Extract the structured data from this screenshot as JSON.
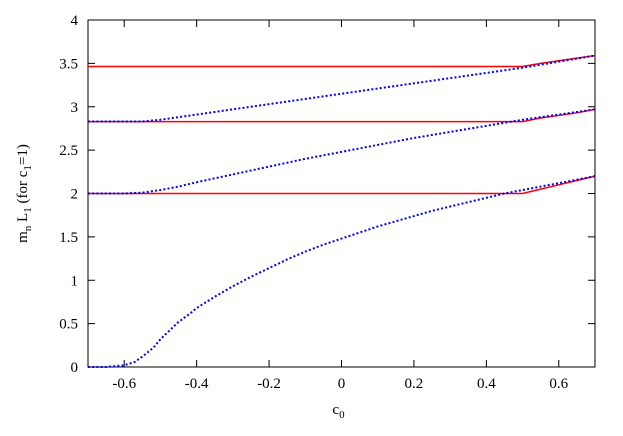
{
  "chart_data": {
    "type": "line",
    "xlabel": {
      "base": "c",
      "sub": "0"
    },
    "ylabel": {
      "parts": [
        {
          "t": "m",
          "sub": false
        },
        {
          "t": "n",
          "sub": true
        },
        {
          "t": " L",
          "sub": false
        },
        {
          "t": "1",
          "sub": true
        },
        {
          "t": " (for c",
          "sub": false
        },
        {
          "t": "1",
          "sub": true
        },
        {
          "t": "=1)",
          "sub": false
        }
      ]
    },
    "xlim": [
      -0.7,
      0.7
    ],
    "ylim": [
      0,
      4
    ],
    "xticks": [
      -0.6,
      -0.4,
      -0.2,
      0,
      0.2,
      0.4,
      0.6
    ],
    "xtick_labels": [
      "-0.6",
      "-0.4",
      "-0.2",
      "0",
      "0.2",
      "0.4",
      "0.6"
    ],
    "yticks": [
      0,
      0.5,
      1,
      1.5,
      2,
      2.5,
      3,
      3.5,
      4
    ],
    "ytick_labels": [
      "0",
      "0.5",
      "1",
      "1.5",
      "2",
      "2.5",
      "3",
      "3.5",
      "4"
    ],
    "grid": false,
    "colors": {
      "solid": "#ff0000",
      "dotted": "#0000ff",
      "axis": "#000000"
    },
    "series": [
      {
        "style": "solid",
        "color": "#ff0000",
        "x": [
          -0.7,
          0.5,
          0.55,
          0.6,
          0.65,
          0.7
        ],
        "y": [
          3.464,
          3.464,
          3.5,
          3.53,
          3.56,
          3.59
        ]
      },
      {
        "style": "solid",
        "color": "#ff0000",
        "x": [
          -0.7,
          0.5,
          0.55,
          0.6,
          0.65,
          0.7
        ],
        "y": [
          2.828,
          2.828,
          2.87,
          2.9,
          2.93,
          2.97
        ]
      },
      {
        "style": "solid",
        "color": "#ff0000",
        "x": [
          -0.7,
          0.5,
          0.55,
          0.6,
          0.65,
          0.7
        ],
        "y": [
          2.0,
          2.0,
          2.05,
          2.1,
          2.15,
          2.2
        ]
      },
      {
        "style": "dotted",
        "color": "#0000ff",
        "x": [
          -0.7,
          -0.6,
          -0.55,
          -0.5,
          -0.45,
          -0.4,
          -0.3,
          -0.2,
          -0.1,
          0.0,
          0.1,
          0.2,
          0.3,
          0.4,
          0.5,
          0.6,
          0.7
        ],
        "y": [
          2.83,
          2.83,
          2.83,
          2.85,
          2.88,
          2.91,
          2.97,
          3.03,
          3.09,
          3.15,
          3.21,
          3.27,
          3.33,
          3.39,
          3.45,
          3.52,
          3.59
        ]
      },
      {
        "style": "dotted",
        "color": "#0000ff",
        "x": [
          -0.7,
          -0.6,
          -0.55,
          -0.5,
          -0.45,
          -0.4,
          -0.3,
          -0.2,
          -0.1,
          0.0,
          0.1,
          0.2,
          0.3,
          0.4,
          0.5,
          0.6,
          0.7
        ],
        "y": [
          2.0,
          2.0,
          2.01,
          2.04,
          2.08,
          2.13,
          2.22,
          2.31,
          2.4,
          2.48,
          2.56,
          2.64,
          2.71,
          2.78,
          2.85,
          2.91,
          2.97
        ]
      },
      {
        "style": "dotted",
        "color": "#0000ff",
        "x": [
          -0.7,
          -0.65,
          -0.6,
          -0.57,
          -0.55,
          -0.52,
          -0.5,
          -0.47,
          -0.45,
          -0.42,
          -0.4,
          -0.35,
          -0.3,
          -0.25,
          -0.2,
          -0.15,
          -0.1,
          -0.05,
          0.0,
          0.05,
          0.1,
          0.15,
          0.2,
          0.25,
          0.3,
          0.35,
          0.4,
          0.45,
          0.5,
          0.55,
          0.6,
          0.65,
          0.7
        ],
        "y": [
          0.0,
          0.0,
          0.02,
          0.06,
          0.12,
          0.22,
          0.32,
          0.44,
          0.52,
          0.61,
          0.68,
          0.81,
          0.93,
          1.04,
          1.14,
          1.24,
          1.33,
          1.41,
          1.48,
          1.55,
          1.62,
          1.68,
          1.74,
          1.8,
          1.85,
          1.9,
          1.95,
          2.0,
          2.04,
          2.08,
          2.12,
          2.16,
          2.2
        ]
      }
    ]
  }
}
